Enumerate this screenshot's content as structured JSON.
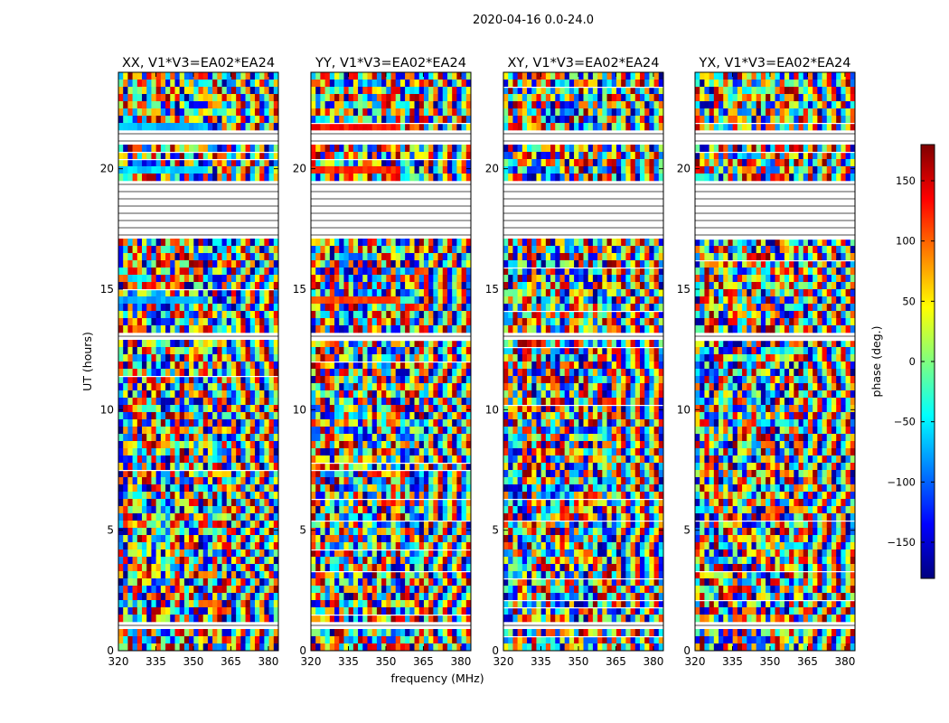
{
  "figure_title": "2020-04-16 0.0-24.0",
  "chart_data": {
    "type": "heatmap",
    "title": "2020-04-16 0.0-24.0",
    "xlabel": "frequency (MHz)",
    "ylabel": "UT (hours)",
    "xlim": [
      320,
      384
    ],
    "ylim": [
      0,
      24
    ],
    "xticks": [
      320,
      335,
      350,
      365,
      380
    ],
    "yticks": [
      0,
      5,
      10,
      15,
      20
    ],
    "colorbar": {
      "label": "phase (deg.)",
      "range": [
        -180,
        180
      ],
      "ticks": [
        150,
        100,
        50,
        0,
        -50,
        -100,
        -150
      ],
      "tick_labels": [
        "150",
        "100",
        "50",
        "0",
        "−50",
        "−100",
        "−150"
      ],
      "colormap": "jet",
      "colors": [
        "#00007f",
        "#0000ff",
        "#007fff",
        "#00ffff",
        "#7fff7f",
        "#ffff00",
        "#ff7f00",
        "#ff0000",
        "#7f0000"
      ]
    },
    "panels": [
      {
        "title": "XX, V1*V3=EA02*EA24",
        "pol": "XX"
      },
      {
        "title": "YY, V1*V3=EA02*EA24",
        "pol": "YY"
      },
      {
        "title": "XY, V1*V3=EA02*EA24",
        "pol": "XY"
      },
      {
        "title": "YX, V1*V3=EA02*EA24",
        "pol": "YX"
      }
    ],
    "flagged_ut_ranges": [
      [
        0.2,
        0.25
      ],
      [
        1.0,
        1.1
      ],
      [
        1.5,
        1.6
      ],
      [
        2.1,
        2.2
      ],
      [
        7.8,
        7.9
      ],
      [
        8.0,
        8.15
      ],
      [
        13.0,
        13.1
      ],
      [
        17.15,
        19.4
      ],
      [
        21.0,
        21.6
      ],
      [
        22.4,
        22.5
      ],
      [
        23.0,
        23.1
      ]
    ],
    "coherent_bands": [
      {
        "ut": [
          2.35,
          2.5
        ],
        "phase_deg": {
          "XX": -20,
          "YY": 130
        }
      },
      {
        "ut": [
          1.2,
          1.3
        ],
        "phase_deg": {
          "XX": -10,
          "YY": 120
        }
      },
      {
        "ut": [
          6.2,
          6.35
        ],
        "phase_deg": {
          "XX": -30,
          "YY": 140
        }
      },
      {
        "ut": [
          14.55,
          14.75
        ],
        "phase_deg": {
          "XX": -75,
          "YY": 110
        }
      },
      {
        "ut": [
          19.8,
          20.2
        ],
        "phase_deg": {
          "XX": -60,
          "YY": 125
        }
      },
      {
        "ut": [
          21.6,
          21.8
        ],
        "phase_deg": {
          "XX": -70,
          "YY": 130
        }
      }
    ]
  }
}
